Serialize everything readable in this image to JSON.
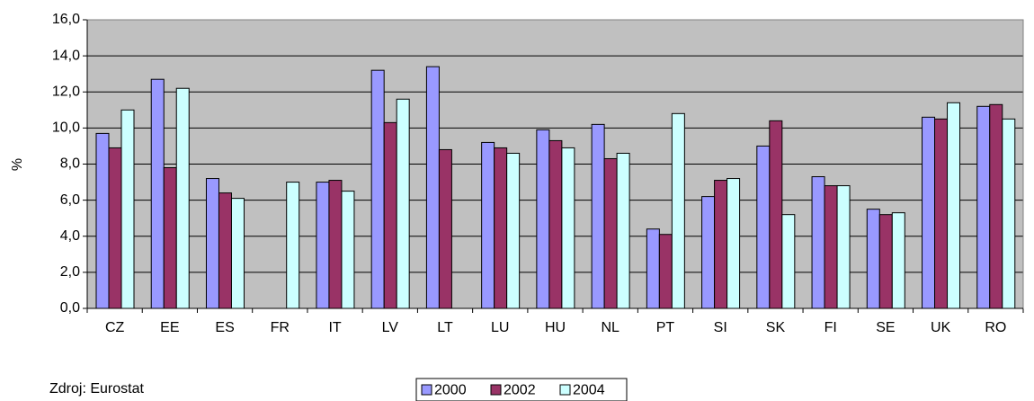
{
  "chart_data": {
    "type": "bar",
    "y_label": "%",
    "source": "Zdroj: Eurostat",
    "categories": [
      "CZ",
      "EE",
      "ES",
      "FR",
      "IT",
      "LV",
      "LT",
      "LU",
      "HU",
      "NL",
      "PT",
      "SI",
      "SK",
      "FI",
      "SE",
      "UK",
      "RO"
    ],
    "series": [
      {
        "name": "2000",
        "color": "#9999ff",
        "values": [
          9.7,
          12.7,
          7.2,
          null,
          7.0,
          13.2,
          13.4,
          9.2,
          9.9,
          10.2,
          4.4,
          6.2,
          9.0,
          7.3,
          5.5,
          10.6,
          11.2
        ]
      },
      {
        "name": "2002",
        "color": "#993366",
        "values": [
          8.9,
          7.8,
          6.4,
          null,
          7.1,
          10.3,
          8.8,
          8.9,
          9.3,
          8.3,
          4.1,
          7.1,
          10.4,
          6.8,
          5.2,
          10.5,
          11.3
        ]
      },
      {
        "name": "2004",
        "color": "#ccffff",
        "values": [
          11.0,
          12.2,
          6.1,
          7.0,
          6.5,
          11.6,
          null,
          8.6,
          8.9,
          8.6,
          10.8,
          7.2,
          5.2,
          6.8,
          5.3,
          11.4,
          10.5
        ]
      }
    ],
    "ylim": [
      0,
      16
    ],
    "yticks": [
      {
        "value": 0,
        "label": "0,0"
      },
      {
        "value": 2,
        "label": "2,0"
      },
      {
        "value": 4,
        "label": "4,0"
      },
      {
        "value": 6,
        "label": "6,0"
      },
      {
        "value": 8,
        "label": "8,0"
      },
      {
        "value": 10,
        "label": "10,0"
      },
      {
        "value": 12,
        "label": "12,0"
      },
      {
        "value": 14,
        "label": "14,0"
      },
      {
        "value": 16,
        "label": "16,0"
      }
    ],
    "grid": true,
    "legend": "bottom",
    "plot_background": "#c0c0c0"
  }
}
